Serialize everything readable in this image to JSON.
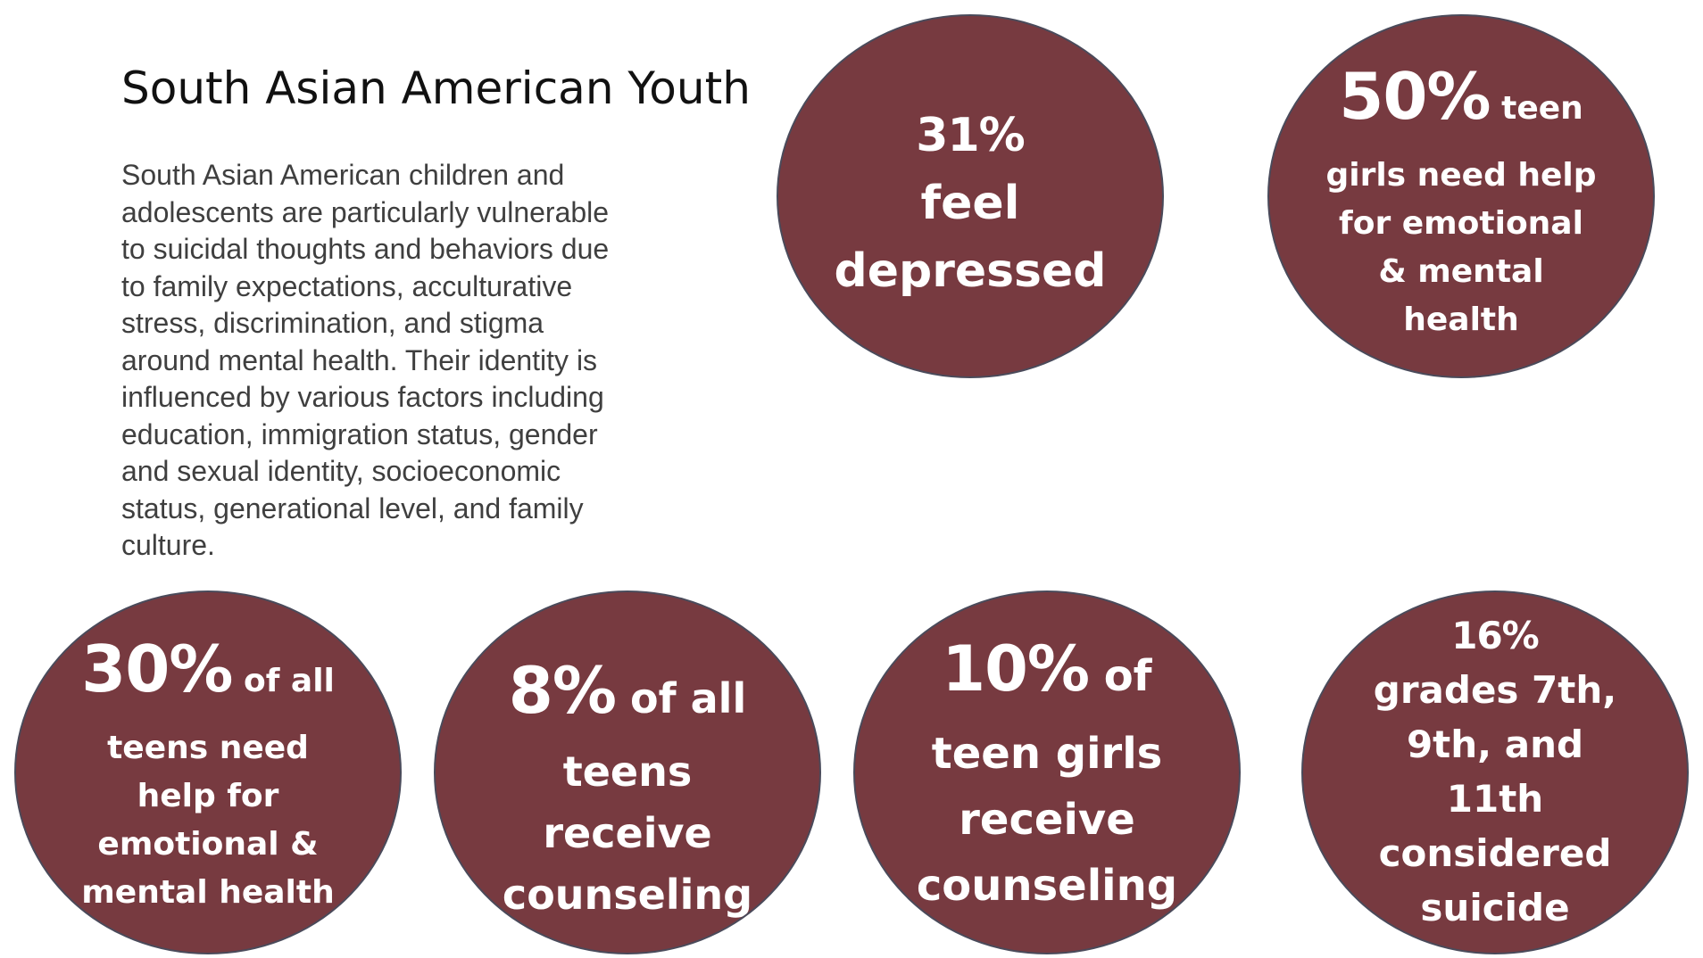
{
  "heading": {
    "title": "South Asian American Youth"
  },
  "description": {
    "lines": [
      "South Asian American children and",
      "adolescents are particularly vulnerable",
      "to suicidal thoughts and behaviors due",
      "to family expectations, acculturative",
      "stress, discrimination, and stigma",
      "around mental health. Their identity is",
      "influenced by various factors including",
      "education, immigration status, gender",
      "and sexual identity, socioeconomic",
      "status, generational level, and family",
      "culture."
    ]
  },
  "colors": {
    "circle_fill": "#773a40",
    "circle_border": "#4a4a5a",
    "circle_text": "#ffffff"
  },
  "stats": [
    {
      "percent": "31%",
      "lead": "",
      "lines": [
        "feel",
        "depressed"
      ]
    },
    {
      "percent": "50%",
      "lead": "teen",
      "lines": [
        "girls need help",
        "for emotional",
        "& mental",
        "health"
      ]
    },
    {
      "percent": "30%",
      "lead": "of all",
      "lines": [
        "teens need",
        "help for",
        "emotional &",
        "mental health"
      ]
    },
    {
      "percent": "8%",
      "lead": "of all",
      "lines": [
        "teens",
        "receive",
        "counseling"
      ]
    },
    {
      "percent": "10%",
      "lead": "of",
      "lines": [
        "teen girls",
        "receive",
        "counseling"
      ]
    },
    {
      "percent": "16%",
      "lead": "",
      "lines": [
        "grades 7th,",
        "9th, and",
        "11th",
        "considered",
        "suicide"
      ]
    }
  ]
}
